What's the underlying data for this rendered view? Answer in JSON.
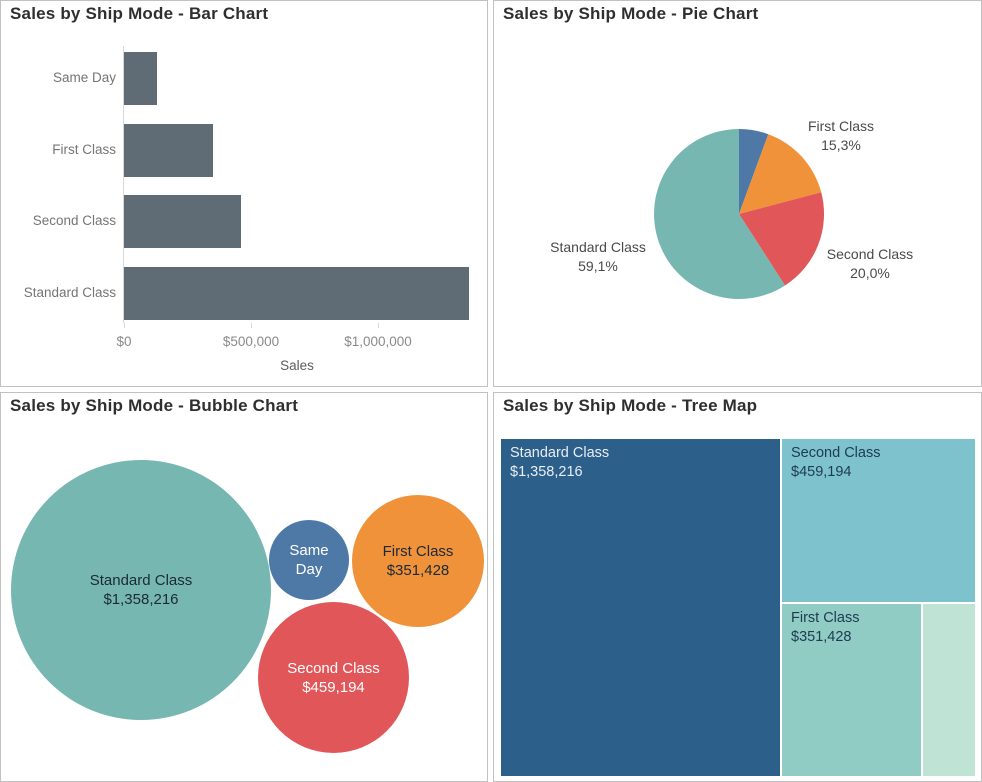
{
  "panels": {
    "bar": {
      "title": "Sales by Ship Mode - Bar Chart"
    },
    "pie": {
      "title": "Sales by Ship Mode - Pie Chart"
    },
    "bubble": {
      "title": "Sales by Ship Mode - Bubble Chart"
    },
    "treemap": {
      "title": "Sales by Ship Mode - Tree Map"
    }
  },
  "colors": {
    "bar_mark": "#5f6b75",
    "same_day_blue": "#4e79a7",
    "first_class_orange": "#f0923a",
    "second_class_red": "#e15759",
    "standard_class_teal": "#76b7b2",
    "treemap_standard": "#2d5f8b",
    "treemap_second": "#7dc2cc",
    "treemap_first": "#90cbc4",
    "treemap_same_day": "#bfe3d5",
    "panel_border": "#c1c1c1",
    "dark_label": "#1b2a36",
    "light_label": "#e8eef4"
  },
  "chart_data": [
    {
      "type": "bar",
      "title": "Sales by Ship Mode - Bar Chart",
      "orientation": "horizontal",
      "categories": [
        "Same Day",
        "First Class",
        "Second Class",
        "Standard Class"
      ],
      "values": [
        128363,
        351428,
        459194,
        1358216
      ],
      "xlabel": "Sales",
      "ylabel": "",
      "xlim": [
        0,
        1360000
      ],
      "x_ticks": [
        {
          "label": "$0",
          "value": 0
        },
        {
          "label": "$500,000",
          "value": 500000
        },
        {
          "label": "$1,000,000",
          "value": 1000000
        }
      ],
      "grid": false,
      "bar_color": "#5f6b75"
    },
    {
      "type": "pie",
      "title": "Sales by Ship Mode - Pie Chart",
      "start_angle": "12 o'clock, clockwise",
      "slices": [
        {
          "name": "Same Day",
          "pct": 5.6,
          "color": "#4e79a7",
          "label": "",
          "pct_label": ""
        },
        {
          "name": "First Class",
          "pct": 15.3,
          "color": "#f0923a",
          "label": "First Class",
          "pct_label": "15,3%"
        },
        {
          "name": "Second Class",
          "pct": 20.0,
          "color": "#e15759",
          "label": "Second Class",
          "pct_label": "20,0%"
        },
        {
          "name": "Standard Class",
          "pct": 59.1,
          "color": "#76b7b2",
          "label": "Standard Class",
          "pct_label": "59,1%"
        }
      ]
    },
    {
      "type": "bubble",
      "title": "Sales by Ship Mode - Bubble Chart",
      "bubbles": [
        {
          "name": "Standard Class",
          "value": 1358216,
          "lines": [
            "Standard Class",
            "$1,358,216"
          ],
          "color": "#76b7b2",
          "text_color": "#1b2a36"
        },
        {
          "name": "Same Day",
          "value": 128363,
          "lines": [
            "Same",
            "Day"
          ],
          "color": "#4e79a7",
          "text_color": "#ffffff"
        },
        {
          "name": "First Class",
          "value": 351428,
          "lines": [
            "First Class",
            "$351,428"
          ],
          "color": "#f0923a",
          "text_color": "#1b2a36"
        },
        {
          "name": "Second Class",
          "value": 459194,
          "lines": [
            "Second Class",
            "$459,194"
          ],
          "color": "#e15759",
          "text_color": "#ffffff"
        }
      ]
    },
    {
      "type": "treemap",
      "title": "Sales by Ship Mode - Tree Map",
      "tiles": [
        {
          "name": "Standard Class",
          "value": 1358216,
          "lines": [
            "Standard Class",
            "$1,358,216"
          ],
          "color": "#2d5f8b",
          "text_color": "#e8eef4"
        },
        {
          "name": "Second Class",
          "value": 459194,
          "lines": [
            "Second Class",
            "$459,194"
          ],
          "color": "#7dc2cc",
          "text_color": "#1e3b50"
        },
        {
          "name": "First Class",
          "value": 351428,
          "lines": [
            "First Class",
            "$351,428"
          ],
          "color": "#90cbc4",
          "text_color": "#1e3b50"
        },
        {
          "name": "Same Day",
          "value": 128363,
          "lines": [],
          "color": "#bfe3d5",
          "text_color": "#1e3b50"
        }
      ]
    }
  ]
}
